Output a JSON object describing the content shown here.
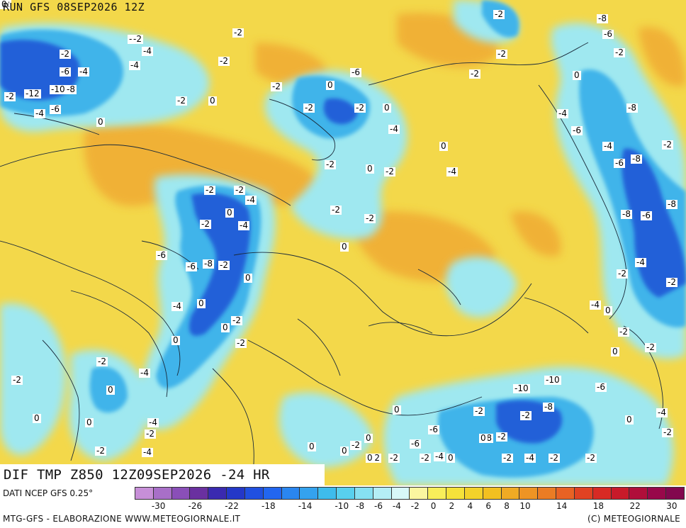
{
  "header": {
    "run_title": "RUN GFS 08SEP2026 12Z"
  },
  "field_title": "DIF TMP Z850 12Z09SEP2026 -24 HR",
  "footer": {
    "source": "DATI NCEP GFS 0.25°",
    "credit": "MTG-GFS - ELABORAZIONE WWW.METEOGIORNALE.IT",
    "copyright": "(C) METEOGIORNALE"
  },
  "colors": {
    "background_positive": "#f3d84a",
    "warm_orange": "#f0a830",
    "cold_light": "#9fe8f0",
    "cold_mid": "#3fb4ea",
    "cold_deep": "#2060d8",
    "coast": "#1a2a3a"
  },
  "legend": {
    "colors": [
      "#c78fd8",
      "#a86fc8",
      "#8a4fb8",
      "#6a30a0",
      "#3a2ab0",
      "#2438c8",
      "#2050e0",
      "#2266f0",
      "#2a86f0",
      "#34a2ee",
      "#3ebcec",
      "#58d0ee",
      "#86e0f2",
      "#b4eef6",
      "#d8f8f8",
      "#fbf6a0",
      "#f8ee5a",
      "#f5e23a",
      "#f3d22a",
      "#f2c020",
      "#f0aa24",
      "#ee9424",
      "#ea7c24",
      "#e86224",
      "#e04222",
      "#d82a24",
      "#c81a2a",
      "#b00e3a",
      "#98084a",
      "#82084e"
    ],
    "tick_labels": [
      "-30",
      "-26",
      "-22",
      "-18",
      "-14",
      "-10",
      "-8",
      "-6",
      "-4",
      "-2",
      "0",
      "2",
      "4",
      "6",
      "8",
      "10",
      "14",
      "18",
      "22",
      "30"
    ]
  },
  "contour_labels": [
    "-2",
    "-2",
    "-4",
    "-6",
    "-4",
    "-2",
    "-12",
    "-10",
    "-8",
    "-4",
    "-6",
    "0",
    "-2",
    "-2",
    "-4",
    "-2",
    "0",
    "-2",
    "0",
    "-2",
    "0",
    "-4",
    "-6",
    "-2",
    "-2",
    "-2",
    "0",
    "-2",
    "-2",
    "-2",
    "0",
    "0",
    "-4",
    "-2",
    "-2",
    "-2",
    "0",
    "-4",
    "-8",
    "-6",
    "-2",
    "-6",
    "-8",
    "-4",
    "-6",
    "-8",
    "-2",
    "-8",
    "-6",
    "-8",
    "-4",
    "-2",
    "-4",
    "0",
    "-2",
    "-2",
    "-2",
    "0",
    "0",
    "-4",
    "-2",
    "-6",
    "-10",
    "-10",
    "-8",
    "-2",
    "-2",
    "-6",
    "-8",
    "-2",
    "-6",
    "-2",
    "-4",
    "0",
    "0",
    "0",
    "-2",
    "0",
    "0",
    "-2",
    "0",
    "-2",
    "0",
    "-2",
    "-4",
    "-2",
    "-2",
    "-2",
    "-2",
    "-4",
    "0",
    "-4",
    "-2",
    "0",
    "-2",
    "-8",
    "-6",
    "-6",
    "-4",
    "0",
    "0",
    "-2",
    "0",
    "-2",
    "-4",
    "-2",
    "0",
    "-2",
    "0",
    "0",
    "-4",
    "-2",
    "-4",
    "-2",
    "-2",
    "0"
  ]
}
